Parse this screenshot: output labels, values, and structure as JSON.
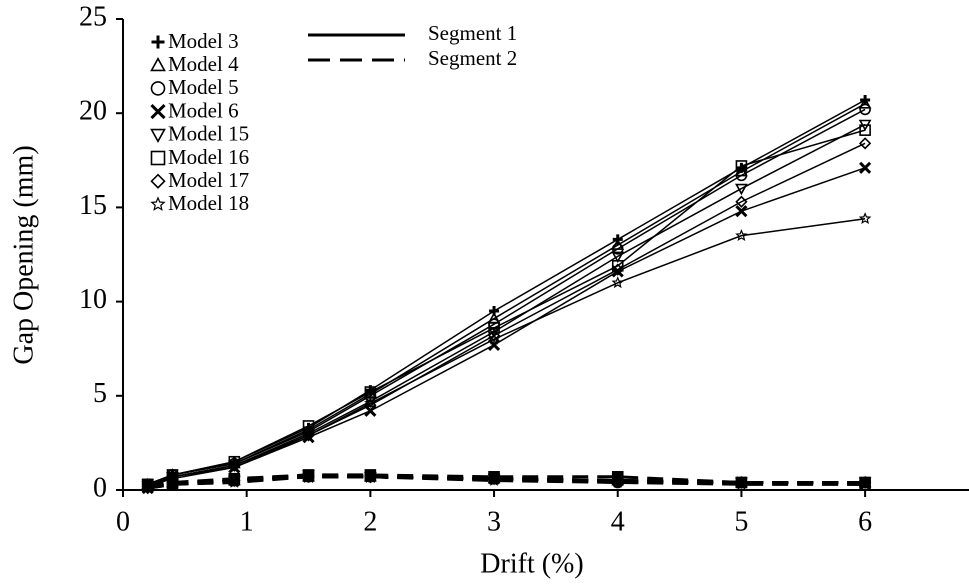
{
  "chart_data": {
    "type": "line",
    "x_label": "Drift (%)",
    "y_label": "Gap Opening (mm)",
    "xlim": [
      0,
      6.84
    ],
    "ylim": [
      0,
      25
    ],
    "xticks": [
      0,
      1,
      2,
      3,
      4,
      5,
      6
    ],
    "yticks": [
      0,
      5,
      10,
      15,
      20,
      25
    ],
    "color": "#000000",
    "line_styles": [
      {
        "name": "Segment 1",
        "dash": "solid"
      },
      {
        "name": "Segment 2",
        "dash": "dashed"
      }
    ],
    "x": [
      0.2,
      0.4,
      0.9,
      1.5,
      2,
      3,
      4,
      5,
      6
    ],
    "series": [
      {
        "name": "Model 3",
        "marker": "plus",
        "values": [
          [
            0.3,
            0.8,
            1.5,
            3.3,
            5.3,
            9.5,
            13.3,
            17.1,
            20.7
          ],
          [
            0.2,
            0.4,
            0.5,
            0.8,
            0.7,
            0.6,
            0.5,
            0.4,
            0.4
          ]
        ]
      },
      {
        "name": "Model 4",
        "marker": "triangle",
        "values": [
          [
            0.3,
            0.8,
            1.4,
            3.2,
            5.1,
            9.1,
            13.0,
            16.9,
            20.5
          ],
          [
            0.2,
            0.4,
            0.5,
            0.7,
            0.7,
            0.6,
            0.5,
            0.4,
            0.4
          ]
        ]
      },
      {
        "name": "Model 5",
        "marker": "circle",
        "values": [
          [
            0.3,
            0.8,
            1.4,
            3.1,
            5.0,
            8.8,
            12.8,
            16.7,
            20.2
          ],
          [
            0.2,
            0.3,
            0.5,
            0.7,
            0.7,
            0.6,
            0.4,
            0.4,
            0.4
          ]
        ]
      },
      {
        "name": "Model 6",
        "marker": "cross",
        "values": [
          [
            0.2,
            0.7,
            1.2,
            2.8,
            4.2,
            7.7,
            11.6,
            14.8,
            17.1
          ],
          [
            0.1,
            0.3,
            0.5,
            0.7,
            0.7,
            0.6,
            0.5,
            0.4,
            0.3
          ]
        ]
      },
      {
        "name": "Model 15",
        "marker": "triangle-down",
        "values": [
          [
            0.3,
            0.7,
            1.3,
            3.0,
            4.7,
            8.4,
            12.4,
            16.0,
            19.4
          ],
          [
            0.2,
            0.4,
            0.5,
            0.8,
            0.7,
            0.6,
            0.5,
            0.4,
            0.4
          ]
        ]
      },
      {
        "name": "Model 16",
        "marker": "square",
        "values": [
          [
            0.3,
            0.8,
            1.5,
            3.4,
            5.2,
            8.6,
            11.9,
            17.2,
            19.1
          ],
          [
            0.2,
            0.4,
            0.6,
            0.8,
            0.8,
            0.7,
            0.7,
            0.4,
            0.4
          ]
        ]
      },
      {
        "name": "Model 17",
        "marker": "diamond",
        "values": [
          [
            0.2,
            0.7,
            1.3,
            2.9,
            4.5,
            8.2,
            11.7,
            15.3,
            18.4
          ],
          [
            0.1,
            0.3,
            0.5,
            0.7,
            0.7,
            0.6,
            0.5,
            0.4,
            0.4
          ]
        ]
      },
      {
        "name": "Model 18",
        "marker": "star",
        "values": [
          [
            0.2,
            0.6,
            1.2,
            2.9,
            4.6,
            8.0,
            11.0,
            13.5,
            14.4
          ],
          [
            0.1,
            0.3,
            0.4,
            0.7,
            0.7,
            0.5,
            0.4,
            0.3,
            0.3
          ]
        ]
      }
    ]
  }
}
